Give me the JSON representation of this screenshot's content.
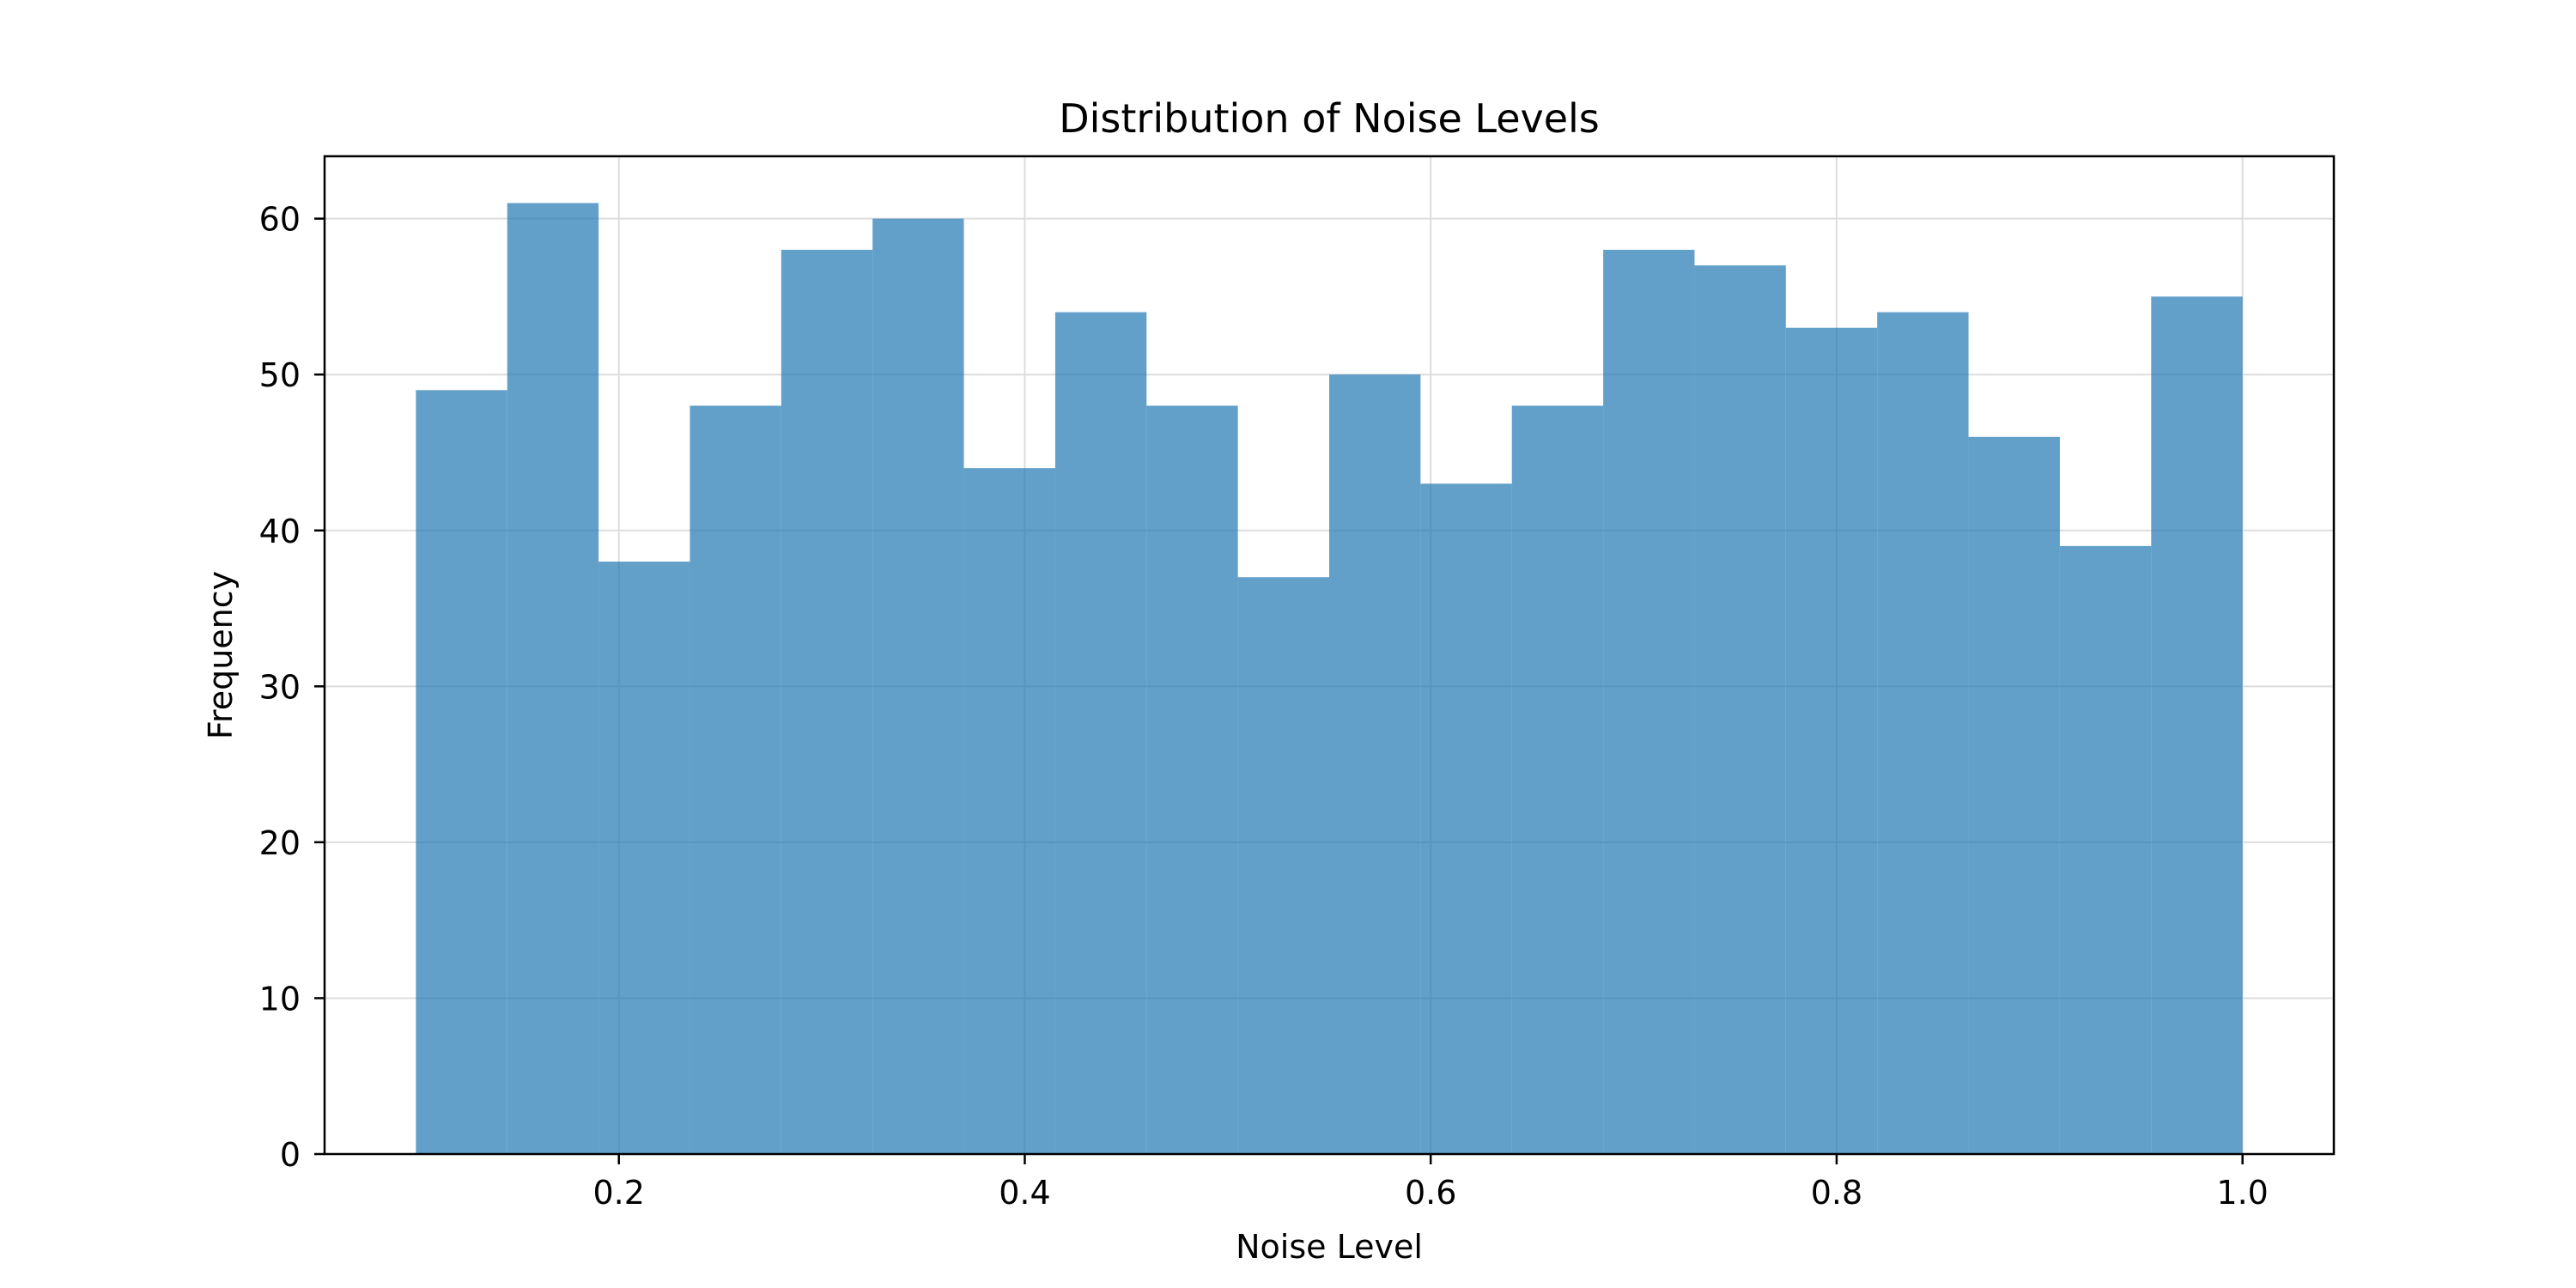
{
  "chart_data": {
    "type": "bar",
    "title": "Distribution of Noise Levels",
    "xlabel": "Noise Level",
    "ylabel": "Frequency",
    "bin_edges": [
      0.1,
      0.145,
      0.19,
      0.235,
      0.28,
      0.325,
      0.37,
      0.415,
      0.46,
      0.505,
      0.55,
      0.595,
      0.64,
      0.685,
      0.73,
      0.775,
      0.82,
      0.865,
      0.91,
      0.955,
      1.0
    ],
    "values": [
      49,
      61,
      38,
      48,
      58,
      60,
      44,
      54,
      48,
      37,
      50,
      43,
      48,
      58,
      57,
      53,
      54,
      46,
      39,
      55
    ],
    "xlim": [
      0.055,
      1.045
    ],
    "ylim": [
      0,
      64
    ],
    "xticks": [
      0.2,
      0.4,
      0.6,
      0.8,
      1.0
    ],
    "xtick_labels": [
      "0.2",
      "0.4",
      "0.6",
      "0.8",
      "1.0"
    ],
    "yticks": [
      0,
      10,
      20,
      30,
      40,
      50,
      60
    ],
    "ytick_labels": [
      "0",
      "10",
      "20",
      "30",
      "40",
      "50",
      "60"
    ],
    "grid": true,
    "bar_color": "#1f77b4",
    "bar_alpha": 0.7,
    "grid_color": "#dddddd"
  }
}
